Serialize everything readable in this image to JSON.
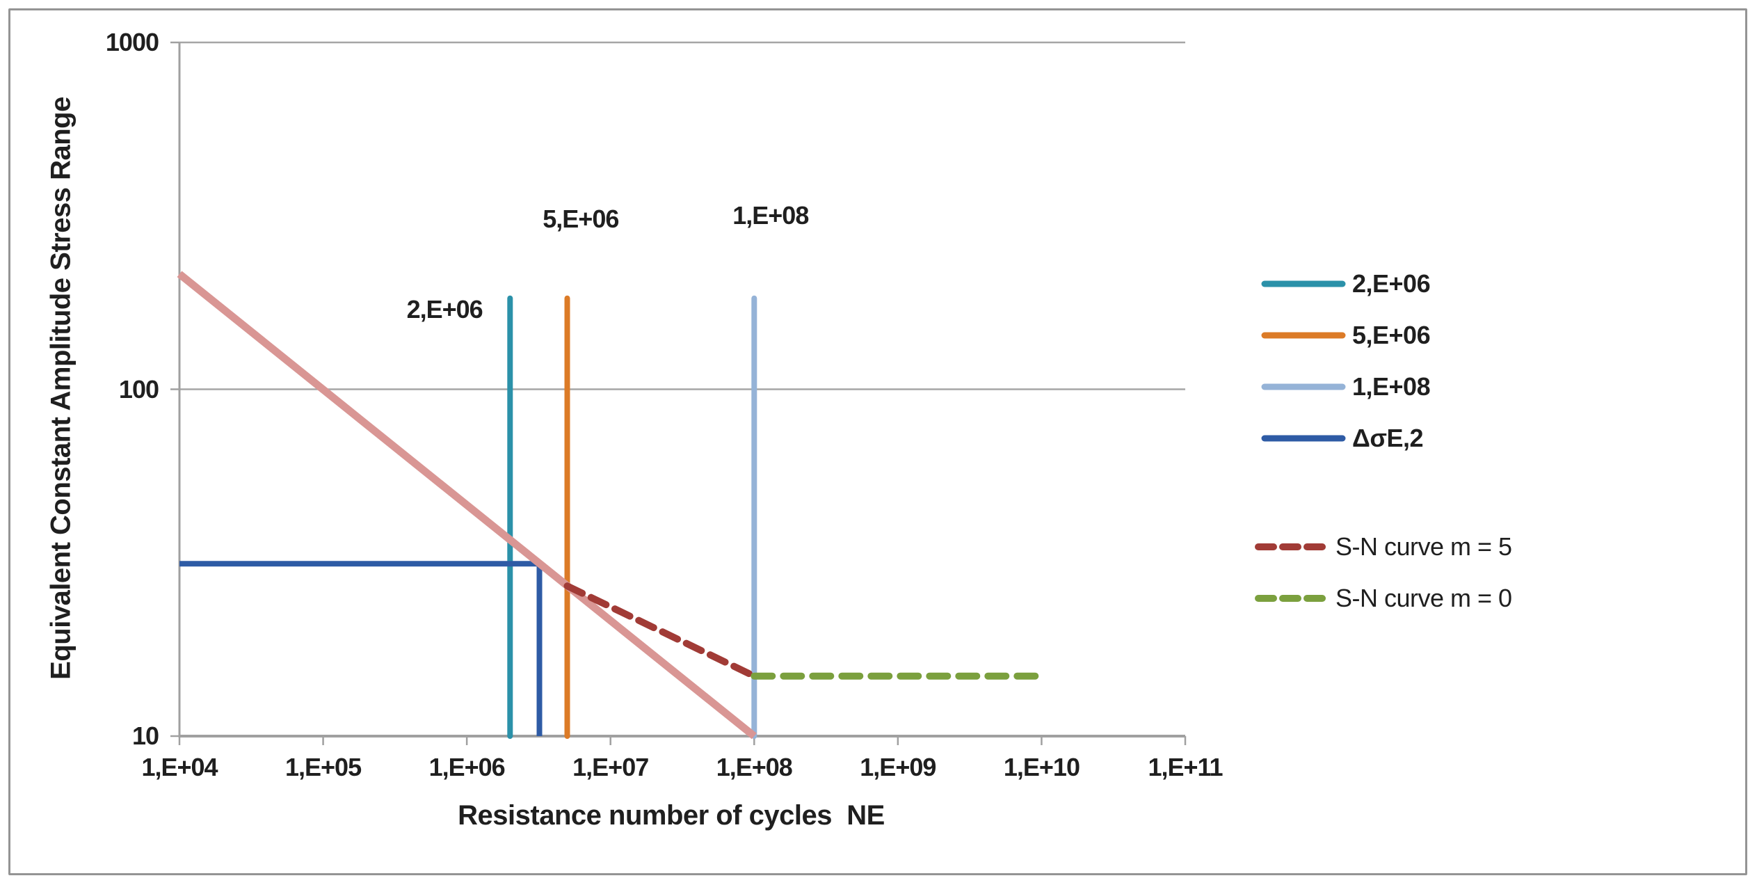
{
  "chart_data": {
    "type": "line",
    "title": "",
    "x_axis": {
      "label": "Resistance number of cycles  NE",
      "scale": "log",
      "min": 10000.0,
      "max": 100000000000.0,
      "ticks": [
        {
          "label": "1,E+04",
          "value": 10000.0
        },
        {
          "label": "1,E+05",
          "value": 100000.0
        },
        {
          "label": "1,E+06",
          "value": 1000000.0
        },
        {
          "label": "1,E+07",
          "value": 10000000.0
        },
        {
          "label": "1,E+08",
          "value": 100000000.0
        },
        {
          "label": "1,E+09",
          "value": 1000000000.0
        },
        {
          "label": "1,E+10",
          "value": 10000000000.0
        },
        {
          "label": "1,E+11",
          "value": 100000000000.0
        }
      ]
    },
    "y_axis": {
      "label": "Equivalent Constant Amplitude Stress Range",
      "scale": "log",
      "min": 10,
      "max": 1000,
      "ticks": [
        {
          "label": "1000",
          "value": 1000
        },
        {
          "label": "100",
          "value": 100
        },
        {
          "label": "10",
          "value": 10
        }
      ],
      "gridlines": [
        1000,
        100
      ]
    },
    "grid": "horizontal-only",
    "series": [
      {
        "id": "vertical-2e06",
        "legend_label": "2,E+06",
        "color": "#2B91A9",
        "width": 8,
        "cap": "round",
        "dash": null,
        "points": [
          [
            2000000.0,
            10
          ],
          [
            2000000.0,
            183
          ]
        ]
      },
      {
        "id": "vertical-5e06",
        "legend_label": "5,E+06",
        "color": "#DC7B27",
        "width": 8,
        "cap": "round",
        "dash": null,
        "points": [
          [
            5000000.0,
            10
          ],
          [
            5000000.0,
            183
          ]
        ]
      },
      {
        "id": "vertical-1e08",
        "legend_label": "1,E+08",
        "color": "#95B3D7",
        "width": 8,
        "cap": "round",
        "dash": null,
        "points": [
          [
            100000000.0,
            10
          ],
          [
            100000000.0,
            183
          ]
        ]
      },
      {
        "id": "delta-sigma-E2",
        "legend_label": "ΔσE,2",
        "color": "#2E5BA5",
        "width": 8,
        "cap": "butt",
        "dash": null,
        "points": [
          [
            10000.0,
            31.4
          ],
          [
            3200000.0,
            31.4
          ],
          [
            3200000.0,
            10
          ]
        ]
      },
      {
        "id": "sn-curve-m3-solid",
        "legend_label": "",
        "color": "#D99694",
        "width": 11,
        "cap": "butt",
        "dash": null,
        "points": [
          [
            10000.0,
            215
          ],
          [
            100000000.0,
            10
          ]
        ]
      },
      {
        "id": "sn-curve-m5",
        "legend_label": "S-N curve m = 5",
        "color": "#A13B36",
        "width": 10,
        "cap": "round",
        "dash": [
          24,
          14
        ],
        "points": [
          [
            5000000.0,
            27.1
          ],
          [
            100000000.0,
            14.9
          ]
        ]
      },
      {
        "id": "sn-curve-m0",
        "legend_label": "S-N curve m = 0",
        "color": "#7BA03E",
        "width": 10,
        "cap": "round",
        "dash": [
          26,
          16
        ],
        "points": [
          [
            100000000.0,
            14.9
          ],
          [
            10000000000.0,
            14.9
          ]
        ]
      }
    ],
    "annotations": [
      {
        "text": "2,E+06",
        "x": 700000.0,
        "y": 170
      },
      {
        "text": "5,E+06",
        "x": 6200000.0,
        "y": 310
      },
      {
        "text": "1,E+08",
        "x": 130000000.0,
        "y": 316
      }
    ],
    "legend": {
      "position": "right",
      "groups": [
        {
          "items": [
            {
              "label": "2,E+06",
              "color": "#2B91A9",
              "dash": false
            },
            {
              "label": "5,E+06",
              "color": "#DC7B27",
              "dash": false
            },
            {
              "label": "1,E+08",
              "color": "#95B3D7",
              "dash": false
            },
            {
              "label": "ΔσE,2",
              "color": "#2E5BA5",
              "dash": false
            }
          ]
        },
        {
          "items": [
            {
              "label": "S-N curve m = 5",
              "color": "#A13B36",
              "dash": true
            },
            {
              "label": "S-N curve m = 0",
              "color": "#7BA03E",
              "dash": true
            }
          ]
        }
      ]
    },
    "colors": {
      "grid": "#A6A6A6",
      "axis": "#A0A0A0",
      "text": "#1F1F1F",
      "border": "#949494",
      "background": "#FFFFFF"
    }
  }
}
